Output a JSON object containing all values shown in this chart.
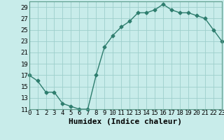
{
  "x": [
    0,
    1,
    2,
    3,
    4,
    5,
    6,
    7,
    8,
    9,
    10,
    11,
    12,
    13,
    14,
    15,
    16,
    17,
    18,
    19,
    20,
    21,
    22,
    23
  ],
  "y": [
    17,
    16,
    14,
    14,
    12,
    11.5,
    11,
    11,
    17,
    22,
    24,
    25.5,
    26.5,
    28,
    28,
    28.5,
    29.5,
    28.5,
    28,
    28,
    27.5,
    27,
    25,
    23
  ],
  "line_color": "#2e7d6e",
  "marker": "D",
  "marker_size": 2.5,
  "bg_color": "#c8ecea",
  "grid_color": "#9ecfcb",
  "xlabel": "Humidex (Indice chaleur)",
  "xlim": [
    0,
    23
  ],
  "ylim": [
    11,
    30
  ],
  "yticks": [
    11,
    13,
    15,
    17,
    19,
    21,
    23,
    25,
    27,
    29
  ],
  "xticks": [
    0,
    1,
    2,
    3,
    4,
    5,
    6,
    7,
    8,
    9,
    10,
    11,
    12,
    13,
    14,
    15,
    16,
    17,
    18,
    19,
    20,
    21,
    22,
    23
  ],
  "xlabel_fontsize": 8,
  "tick_fontsize": 6.5,
  "spine_color": "#5a9a8a"
}
